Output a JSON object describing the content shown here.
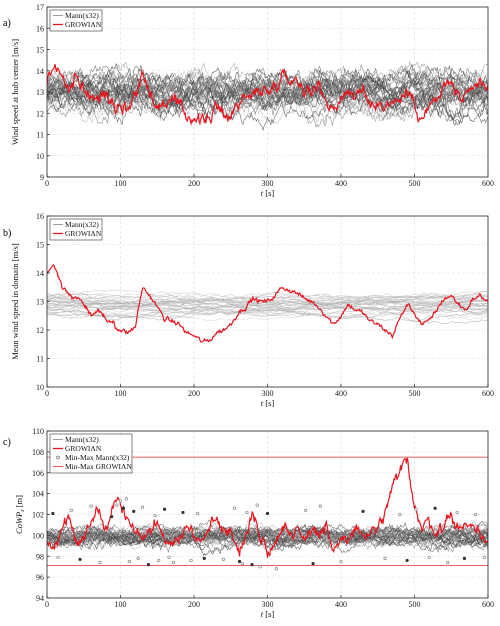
{
  "chart_data": [
    {
      "type": "line",
      "panel_label": "a)",
      "xlabel_var": "t",
      "xlabel_unit": "[s]",
      "ylabel": "Wind speed at hub center [m/s]",
      "xlim": [
        0,
        600
      ],
      "ylim": [
        9,
        17
      ],
      "xticks": [
        0,
        100,
        200,
        300,
        400,
        500,
        600
      ],
      "yticks": [
        9,
        10,
        11,
        12,
        13,
        14,
        15,
        16,
        17
      ],
      "grid": true,
      "legend_position": "top-left",
      "legend": [
        "Mann(x32)",
        "GROWIAN"
      ],
      "series": [
        {
          "name": "Mann(x32)",
          "count": 32,
          "style": "gray",
          "mean": 13.0,
          "spread": 0.8,
          "fluct": 0.75
        },
        {
          "name": "GROWIAN",
          "style": "red",
          "x": [
            0,
            10,
            20,
            30,
            40,
            50,
            60,
            70,
            80,
            90,
            100,
            110,
            120,
            130,
            140,
            150,
            160,
            170,
            180,
            190,
            200,
            210,
            220,
            230,
            240,
            250,
            260,
            270,
            280,
            290,
            300,
            310,
            320,
            330,
            340,
            350,
            360,
            370,
            380,
            390,
            400,
            410,
            420,
            430,
            440,
            450,
            460,
            470,
            480,
            490,
            500,
            510,
            520,
            530,
            540,
            550,
            560,
            570,
            580,
            590,
            600
          ],
          "y": [
            13.5,
            14.3,
            13.8,
            13.0,
            13.6,
            13.2,
            12.7,
            12.6,
            13.1,
            12.5,
            12.4,
            12.2,
            13.0,
            13.8,
            13.1,
            12.2,
            12.5,
            12.6,
            12.3,
            11.9,
            11.8,
            11.6,
            11.8,
            12.2,
            12.0,
            11.9,
            12.5,
            12.8,
            12.8,
            13.2,
            13.0,
            13.3,
            13.9,
            13.6,
            13.6,
            13.2,
            13.0,
            13.3,
            12.6,
            12.2,
            12.7,
            13.1,
            12.8,
            13.0,
            12.4,
            12.5,
            12.3,
            12.6,
            12.6,
            13.0,
            12.5,
            11.7,
            12.3,
            12.6,
            13.2,
            13.5,
            12.7,
            12.6,
            13.1,
            13.5,
            12.9
          ]
        }
      ]
    },
    {
      "type": "line",
      "panel_label": "b)",
      "xlabel_var": "t",
      "xlabel_unit": "[s]",
      "ylabel": "Mean wind speed in domain [m/s]",
      "xlim": [
        0,
        600
      ],
      "ylim": [
        10,
        16
      ],
      "xticks": [
        0,
        100,
        200,
        300,
        400,
        500,
        600
      ],
      "yticks": [
        10,
        11,
        12,
        13,
        14,
        15,
        16
      ],
      "grid": true,
      "legend_position": "top-left",
      "legend": [
        "Mann(x32)",
        "GROWIAN"
      ],
      "series": [
        {
          "name": "Mann(x32)",
          "count": 32,
          "style": "lightgray",
          "mean": 12.9,
          "spread": 0.45,
          "fluct": 0.3
        },
        {
          "name": "GROWIAN",
          "style": "red",
          "x": [
            0,
            10,
            20,
            30,
            40,
            50,
            60,
            70,
            80,
            90,
            100,
            110,
            120,
            130,
            140,
            150,
            160,
            170,
            180,
            190,
            200,
            210,
            220,
            230,
            240,
            250,
            260,
            270,
            280,
            290,
            300,
            310,
            320,
            330,
            340,
            350,
            360,
            370,
            380,
            390,
            400,
            410,
            420,
            430,
            440,
            450,
            460,
            470,
            480,
            490,
            500,
            510,
            520,
            530,
            540,
            550,
            560,
            570,
            580,
            590,
            600
          ],
          "y": [
            14.0,
            14.2,
            13.6,
            13.2,
            13.1,
            12.9,
            12.5,
            12.7,
            12.4,
            12.2,
            12.0,
            11.9,
            12.1,
            13.5,
            13.2,
            12.8,
            12.4,
            12.3,
            12.2,
            11.9,
            11.8,
            11.6,
            11.6,
            11.9,
            12.0,
            12.2,
            12.6,
            12.8,
            13.1,
            13.0,
            13.0,
            13.2,
            13.5,
            13.4,
            13.3,
            13.1,
            13.0,
            12.8,
            12.5,
            12.2,
            12.5,
            12.9,
            12.7,
            12.6,
            12.3,
            12.2,
            12.0,
            11.8,
            12.4,
            12.9,
            12.6,
            12.2,
            12.3,
            12.7,
            13.1,
            13.2,
            12.9,
            12.7,
            13.1,
            13.2,
            13.0
          ]
        }
      ]
    },
    {
      "type": "line",
      "panel_label": "c)",
      "xlabel_var": "t",
      "xlabel_unit": "[s]",
      "ylabel_var": "CoWP",
      "ylabel_sub": "z",
      "ylabel_unit": "[m]",
      "xlim": [
        0,
        600
      ],
      "ylim": [
        94,
        110
      ],
      "xticks": [
        0,
        100,
        200,
        300,
        400,
        500,
        600
      ],
      "yticks": [
        94,
        96,
        98,
        100,
        102,
        104,
        106,
        108,
        110
      ],
      "grid": true,
      "legend_position": "top-left",
      "legend": [
        "Mann(x32)",
        "GROWIAN",
        "Min-Max Mann(x32)",
        "Min-Max GROWIAN"
      ],
      "minmax_growian": [
        97.1,
        107.5
      ],
      "series": [
        {
          "name": "Mann(x32)",
          "count": 32,
          "style": "gray",
          "mean": 100.0,
          "spread": 0.5,
          "fluct": 0.9
        },
        {
          "name": "GROWIAN",
          "style": "red",
          "x": [
            0,
            10,
            20,
            30,
            40,
            50,
            60,
            70,
            80,
            90,
            100,
            110,
            120,
            130,
            140,
            150,
            160,
            170,
            180,
            190,
            200,
            210,
            220,
            230,
            240,
            250,
            260,
            270,
            280,
            290,
            300,
            310,
            320,
            330,
            340,
            350,
            360,
            370,
            380,
            390,
            400,
            410,
            420,
            430,
            440,
            450,
            460,
            470,
            480,
            490,
            500,
            510,
            520,
            530,
            540,
            550,
            560,
            570,
            580,
            590,
            600
          ],
          "y": [
            99.5,
            98.8,
            100.5,
            101.8,
            99.2,
            100.0,
            101.5,
            102.5,
            101.0,
            102.8,
            103.0,
            101.2,
            100.5,
            99.8,
            100.2,
            101.0,
            100.0,
            99.5,
            99.8,
            100.8,
            100.0,
            99.2,
            100.5,
            101.5,
            101.0,
            100.2,
            98.5,
            99.5,
            102.5,
            100.0,
            98.2,
            99.5,
            101.0,
            100.2,
            100.5,
            99.8,
            100.8,
            100.0,
            100.5,
            98.0,
            100.0,
            99.5,
            100.8,
            99.8,
            100.2,
            100.5,
            102.0,
            104.5,
            106.0,
            107.4,
            103.0,
            100.5,
            101.5,
            100.2,
            101.0,
            102.0,
            100.5,
            101.2,
            100.8,
            100.0,
            99.5
          ]
        },
        {
          "name": "Min-Max Mann(x32)",
          "style": "markers",
          "x": [
            8,
            15,
            33,
            45,
            60,
            72,
            88,
            95,
            100,
            104,
            108,
            112,
            118,
            124,
            130,
            138,
            147,
            152,
            160,
            166,
            172,
            185,
            196,
            205,
            214,
            240,
            255,
            262,
            266,
            272,
            279,
            286,
            290,
            300,
            312,
            352,
            362,
            372,
            400,
            430,
            460,
            480,
            490,
            502,
            520,
            528,
            545,
            558,
            568,
            583,
            595
          ],
          "y": [
            102.1,
            97.9,
            102.4,
            97.7,
            102.8,
            97.4,
            101.8,
            102.9,
            103.3,
            102.6,
            103.5,
            97.5,
            102.3,
            97.8,
            102.7,
            97.2,
            101.9,
            97.6,
            102.5,
            97.9,
            97.4,
            102.2,
            97.6,
            102.1,
            97.8,
            97.7,
            102.6,
            97.5,
            97.3,
            102.2,
            97.2,
            102.9,
            97.0,
            102.1,
            96.8,
            102.4,
            97.3,
            102.8,
            97.5,
            102.3,
            97.8,
            102.0,
            97.6,
            102.5,
            97.9,
            102.6,
            97.4,
            102.2,
            97.8,
            102.0,
            97.9
          ]
        }
      ]
    }
  ]
}
